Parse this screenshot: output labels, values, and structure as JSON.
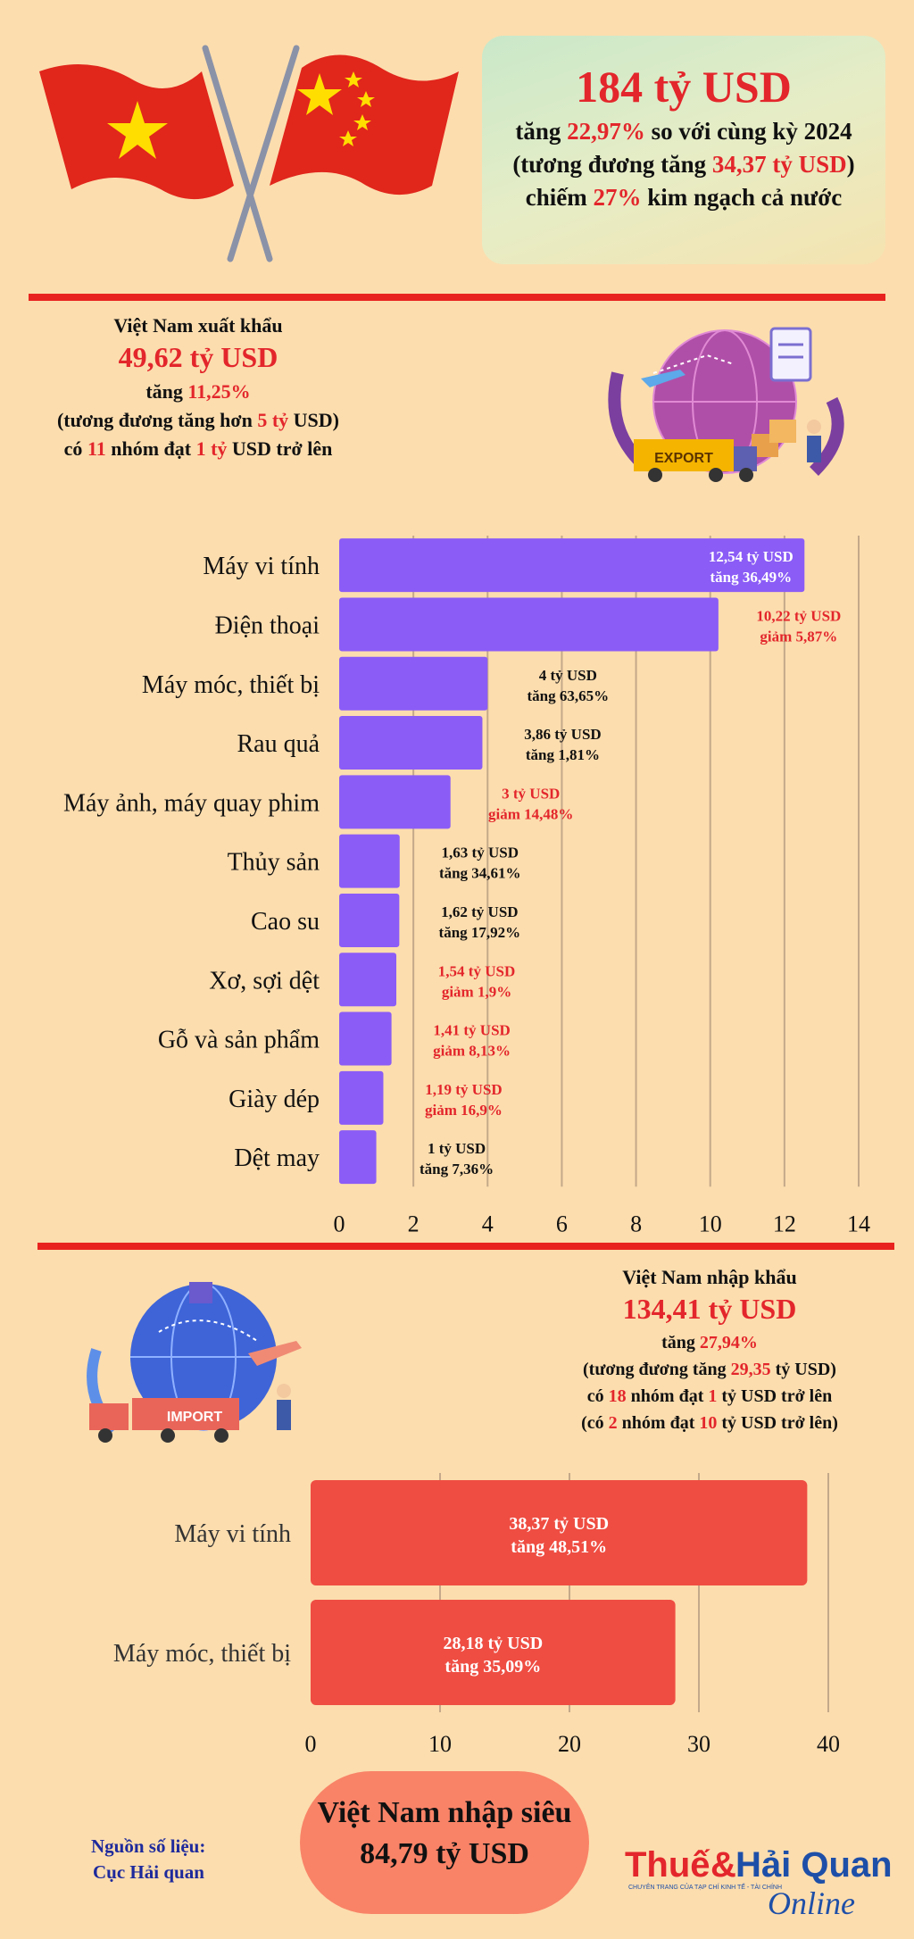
{
  "summary": {
    "total": "184 tỷ USD",
    "l1_pre": "tăng ",
    "l1_pct": "22,97%",
    "l1_post": " so với cùng kỳ 2024",
    "l2_pre": "(tương đương tăng ",
    "l2_val": "34,37 tỷ USD",
    "l2_post": ")",
    "l3_pre": "chiếm ",
    "l3_pct": "27%",
    "l3_post": " kim ngạch cả nước"
  },
  "export": {
    "heading": "Việt Nam xuất khẩu",
    "value": "49,62 tỷ USD",
    "l1_pre": "tăng ",
    "l1_pct": "11,25%",
    "l2_pre": "(tương đương tăng hơn ",
    "l2_val": "5 tỷ",
    "l2_post": " USD)",
    "l3_pre": "có ",
    "l3_n": "11",
    "l3_mid": " nhóm đạt ",
    "l3_v": "1 tỷ",
    "l3_post": " USD trở lên",
    "badge": "EXPORT"
  },
  "import": {
    "heading": "Việt Nam nhập khẩu",
    "value": "134,41 tỷ USD",
    "l1_pre": "tăng ",
    "l1_pct": "27,94%",
    "l2_pre": "(tương đương tăng ",
    "l2_val": "29,35",
    "l2_post": " tỷ USD)",
    "l3_pre": "có ",
    "l3_n": "18",
    "l3_mid": " nhóm đạt ",
    "l3_v": "1",
    "l3_post": " tỷ USD trở lên",
    "l4_pre": "(có ",
    "l4_n": "2",
    "l4_mid": " nhóm đạt ",
    "l4_v": "10",
    "l4_post": " tỷ USD trở lên)",
    "badge": "IMPORT"
  },
  "chart_data": [
    {
      "type": "bar",
      "orientation": "horizontal",
      "categories": [
        "Máy vi tính",
        "Điện thoại",
        "Máy móc, thiết bị",
        "Rau quả",
        "Máy ảnh, máy quay phim",
        "Thủy sản",
        "Cao su",
        "Xơ, sợi dệt",
        "Gỗ và sản phẩm",
        "Giày dép",
        "Dệt may"
      ],
      "values": [
        12.54,
        10.22,
        4,
        3.86,
        3,
        1.63,
        1.62,
        1.54,
        1.41,
        1.19,
        1
      ],
      "labels_value": [
        "12,54 tỷ USD",
        "10,22 tỷ USD",
        "4 tỷ USD",
        "3,86 tỷ USD",
        "3 tỷ USD",
        "1,63 tỷ USD",
        "1,62 tỷ USD",
        "1,54 tỷ USD",
        "1,41 tỷ USD",
        "1,19 tỷ USD",
        "1 tỷ USD"
      ],
      "labels_change": [
        "tăng  36,49%",
        "giảm 5,87%",
        "tăng  63,65%",
        "tăng  1,81%",
        "giảm 14,48%",
        "tăng  34,61%",
        "tăng  17,92%",
        "giảm 1,9%",
        "giảm 8,13%",
        "giảm 16,9%",
        "tăng  7,36%"
      ],
      "trend": [
        "up",
        "down",
        "up",
        "up",
        "down",
        "up",
        "up",
        "down",
        "down",
        "down",
        "up"
      ],
      "xlim": [
        0,
        14
      ],
      "ticks": [
        "0",
        "2",
        "4",
        "6",
        "8",
        "10",
        "12",
        "14"
      ],
      "bar_color": "#8B5CF6",
      "grid": true
    },
    {
      "type": "bar",
      "orientation": "horizontal",
      "categories": [
        "Máy vi tính",
        "Máy móc, thiết bị"
      ],
      "values": [
        38.37,
        28.18
      ],
      "labels_value": [
        "38,37  tỷ USD",
        "28,18  tỷ USD"
      ],
      "labels_change": [
        "tăng  48,51%",
        "tăng  35,09%"
      ],
      "xlim": [
        0,
        40
      ],
      "ticks": [
        "0",
        "10",
        "20",
        "30",
        "40"
      ],
      "bar_color": "#EF4D42",
      "grid": true
    }
  ],
  "deficit": {
    "line1": "Việt Nam nhập siêu",
    "line2": "84,79 tỷ USD"
  },
  "source": {
    "line1": "Nguồn số liệu:",
    "line2": "Cục Hải quan"
  },
  "logo": {
    "word1": "Thuế",
    "amp": "&",
    "word2": "Hải Quan",
    "script": "Online",
    "tagline": "CHUYÊN TRANG CỦA TẠP CHÍ KINH TẾ - TÀI CHÍNH"
  },
  "colors": {
    "background": "#FCDDAE",
    "accent_red": "#E3262B",
    "export_bar": "#8B5CF6",
    "import_bar": "#EF4D42"
  }
}
